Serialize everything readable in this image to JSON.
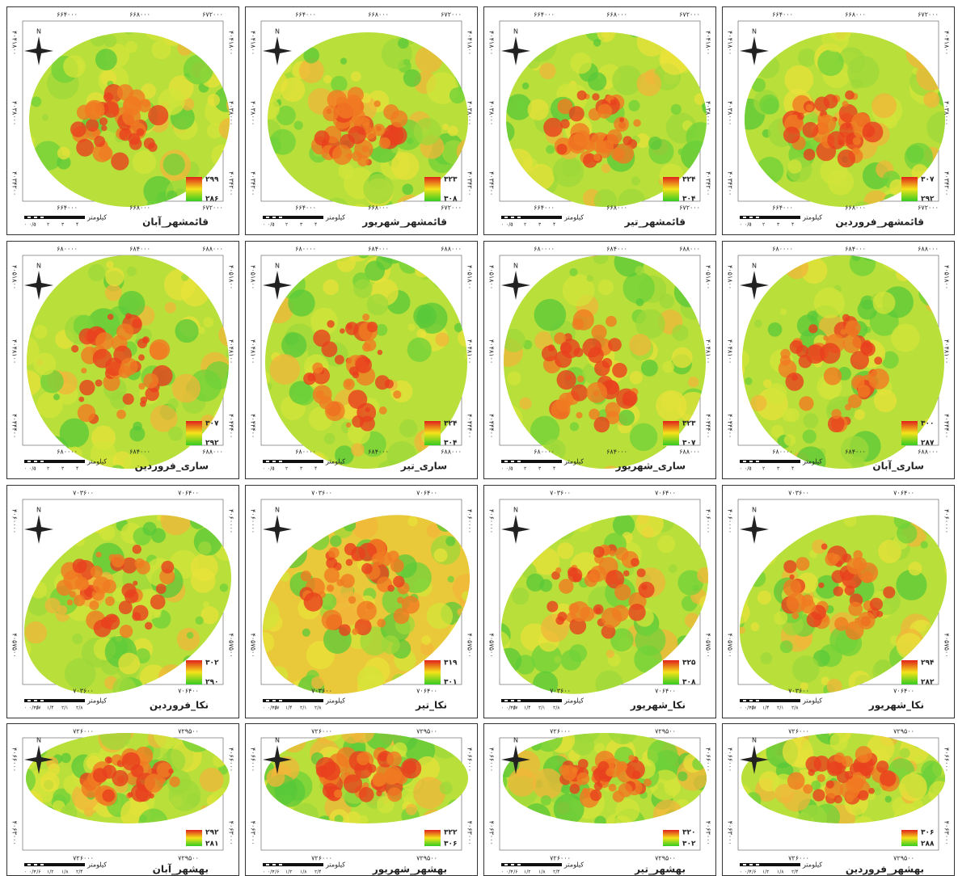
{
  "north": "N",
  "scale_unit": "کیلومتر",
  "rows": [
    {
      "x_ticks": [
        "۶۶۴۰۰۰",
        "۶۶۸۰۰۰",
        "۶۷۲۰۰۰"
      ],
      "y_ticks": [
        "۴۰۴۱۸۰۰",
        "۴۰۳۸۰۰۰",
        "۴۰۳۴۲۰۰"
      ],
      "scale_labels": [
        "۰",
        "۰/۵",
        "۱",
        "۲",
        "۳",
        "۴"
      ],
      "panels": [
        {
          "title": "قائمشهر_آبان",
          "legend_max": "۲۹۹",
          "legend_min": "۲۸۶"
        },
        {
          "title": "قائمشهر_شهریور",
          "legend_max": "۳۲۳",
          "legend_min": "۳۰۸"
        },
        {
          "title": "قائمشهر_تیر",
          "legend_max": "۳۲۴",
          "legend_min": "۳۰۴"
        },
        {
          "title": "قائمشهر_فروردین",
          "legend_max": "۳۰۷",
          "legend_min": "۲۹۲"
        }
      ]
    },
    {
      "x_ticks": [
        "۶۸۰۰۰۰",
        "۶۸۴۰۰۰",
        "۶۸۸۰۰۰"
      ],
      "y_ticks": [
        "۴۰۵۱۸۰۰",
        "۴۰۴۸۱۰۰",
        "۴۰۴۴۴۰۰"
      ],
      "scale_labels": [
        "۰",
        "۰/۵",
        "۱",
        "۲",
        "۳",
        "۴"
      ],
      "panels": [
        {
          "title": "ساری_فروردین",
          "legend_max": "۳۰۷",
          "legend_min": "۲۹۲"
        },
        {
          "title": "ساری_تیر",
          "legend_max": "۳۲۴",
          "legend_min": "۳۰۴"
        },
        {
          "title": "ساری_شهریور",
          "legend_max": "۳۲۳",
          "legend_min": "۳۰۷"
        },
        {
          "title": "ساری_آبان",
          "legend_max": "۳۰۰",
          "legend_min": "۲۸۷"
        }
      ]
    },
    {
      "x_ticks": [
        "۷۰۳۶۰۰",
        "۷۰۶۴۰۰"
      ],
      "y_ticks": [
        "۴۰۶۰۰۰۰",
        "۴۰۵۷۵۰۰"
      ],
      "scale_labels": [
        "۰",
        "۰/۳۵",
        "۰/۷",
        "۱/۴",
        "۲/۱",
        "۲/۸"
      ],
      "panels": [
        {
          "title": "نکا_فروردین",
          "legend_max": "۳۰۲",
          "legend_min": "۲۹۰"
        },
        {
          "title": "نکا_تیر",
          "legend_max": "۳۱۹",
          "legend_min": "۳۰۱"
        },
        {
          "title": "نکا_شهریور",
          "legend_max": "۳۲۵",
          "legend_min": "۳۰۸"
        },
        {
          "title": "نکا_شهریور",
          "legend_max": "۲۹۴",
          "legend_min": "۲۸۲"
        }
      ]
    },
    {
      "x_ticks": [
        "۷۲۶۰۰۰",
        "۷۲۹۵۰۰"
      ],
      "y_ticks": [
        "۴۰۶۶۰۰۰",
        "۴۰۶۳۰۰۰"
      ],
      "scale_labels": [
        "۰",
        "۰/۳",
        "۰/۶",
        "۱/۲",
        "۱/۸",
        "۲/۴"
      ],
      "panels": [
        {
          "title": "بهشهر_آبان",
          "legend_max": "۲۹۲",
          "legend_min": "۲۸۱"
        },
        {
          "title": "بهشهر_شهریور",
          "legend_max": "۳۲۲",
          "legend_min": "۳۰۶"
        },
        {
          "title": "بهشهر_تیر",
          "legend_max": "۳۲۰",
          "legend_min": "۳۰۲"
        },
        {
          "title": "بهشهر_فروردین",
          "legend_max": "۳۰۶",
          "legend_min": "۲۸۸"
        }
      ]
    }
  ]
}
